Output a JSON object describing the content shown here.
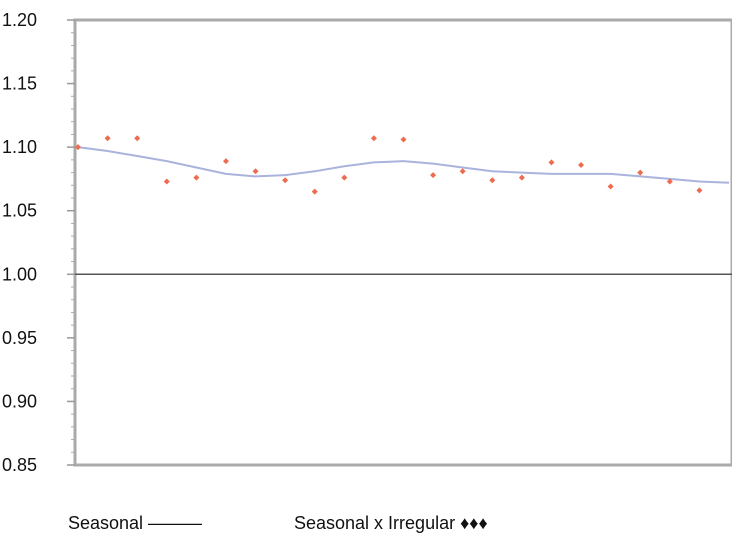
{
  "chart_data": {
    "type": "line",
    "title": "",
    "xlabel": "",
    "ylabel": "",
    "ylim": [
      0.85,
      1.2
    ],
    "yticks": [
      "0.85",
      "0.90",
      "0.95",
      "1.00",
      "1.05",
      "1.10",
      "1.15",
      "1.20"
    ],
    "reference_line": 1.0,
    "grid": false,
    "legend_position": "bottom",
    "x": [
      1,
      2,
      3,
      4,
      5,
      6,
      7,
      8,
      9,
      10,
      11,
      12,
      13,
      14,
      15,
      16,
      17,
      18,
      19,
      20,
      21,
      22,
      23
    ],
    "series": [
      {
        "name": "Seasonal",
        "legend_label": "Seasonal ———",
        "style": "line",
        "color": "#a9b3dc",
        "values": [
          1.1,
          1.097,
          1.093,
          1.089,
          1.084,
          1.079,
          1.077,
          1.078,
          1.081,
          1.085,
          1.088,
          1.089,
          1.087,
          1.084,
          1.081,
          1.08,
          1.079,
          1.079,
          1.079,
          1.077,
          1.075,
          1.073,
          1.072
        ]
      },
      {
        "name": "Seasonal x Irregular",
        "legend_label": "Seasonal x Irregular ♦♦♦",
        "style": "points",
        "color": "#ee6b4f",
        "values": [
          1.1,
          1.107,
          1.107,
          1.073,
          1.076,
          1.089,
          1.081,
          1.074,
          1.065,
          1.076,
          1.107,
          1.106,
          1.078,
          1.081,
          1.074,
          1.076,
          1.088,
          1.086,
          1.069,
          1.08,
          1.073,
          1.066,
          null
        ]
      }
    ]
  }
}
